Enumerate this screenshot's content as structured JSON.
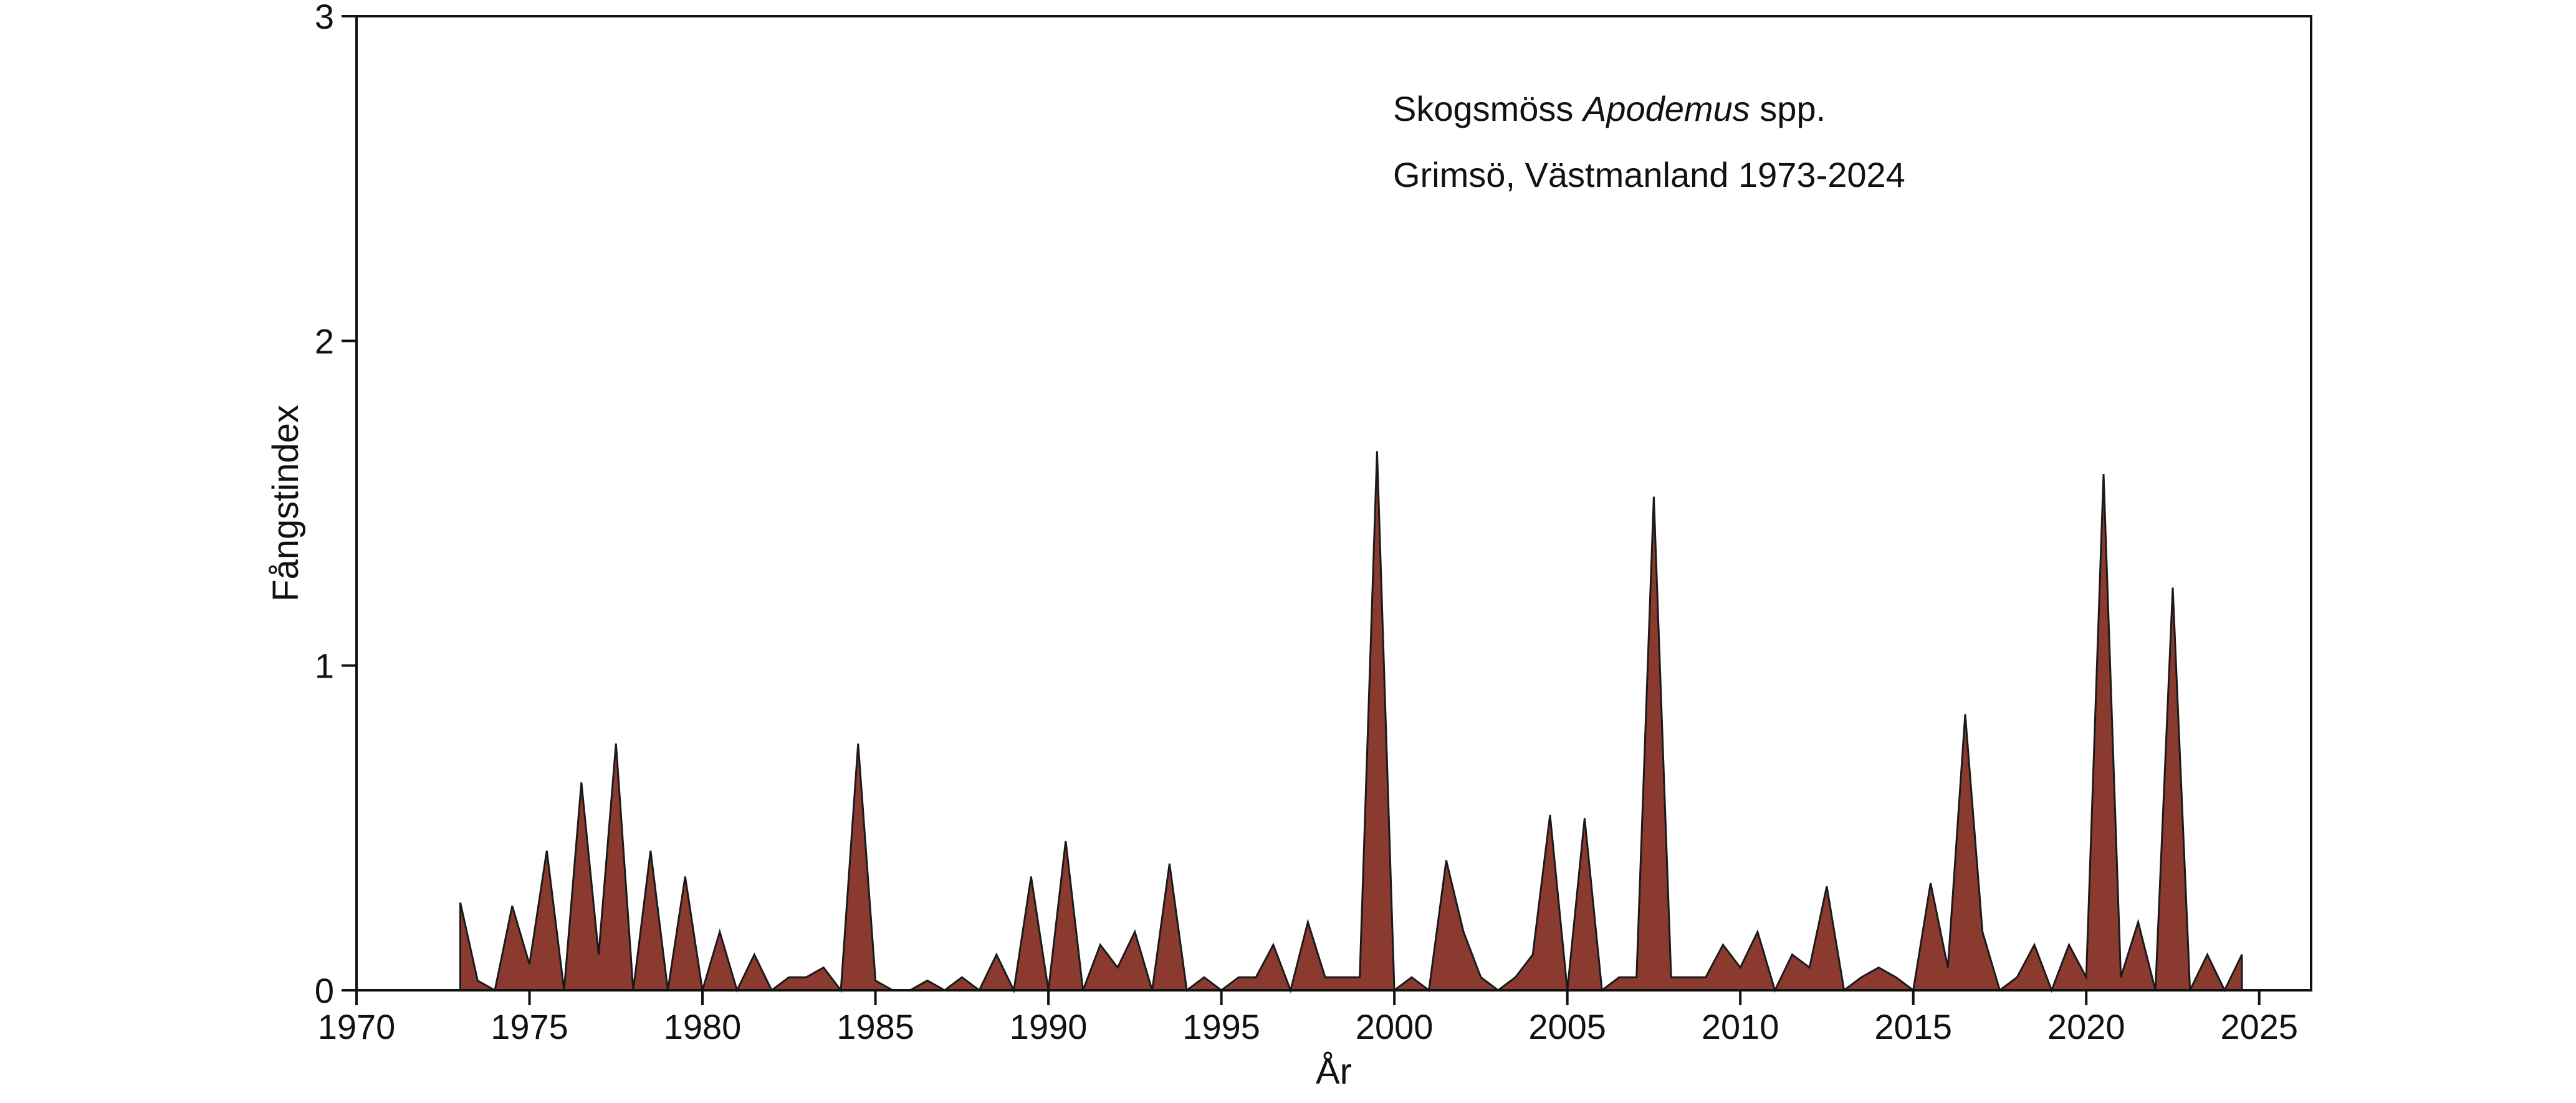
{
  "chart_data": {
    "type": "area",
    "annotations": {
      "species_prefix": "Skogsmöss ",
      "species_genus": "Apodemus",
      "species_suffix": " spp.",
      "location": "Grimsö, Västmanland 1973-2024"
    },
    "xlabel": "År",
    "ylabel": "Fångstindex",
    "xlim": [
      1970,
      2026.5
    ],
    "ylim": [
      0,
      3
    ],
    "xticks": [
      1970,
      1975,
      1980,
      1985,
      1990,
      1995,
      2000,
      2005,
      2010,
      2015,
      2020,
      2025
    ],
    "yticks": [
      0,
      1,
      2,
      3
    ],
    "grid": false,
    "fill_color": "#8B3A2F",
    "line_color": "#1a1a1a",
    "series": [
      {
        "x": [
          1973.0,
          1973.5,
          1974.0,
          1974.5,
          1975.0,
          1975.5,
          1976.0,
          1976.5,
          1977.0,
          1977.5,
          1978.0,
          1978.5,
          1979.0,
          1979.5,
          1980.0,
          1980.5,
          1981.0,
          1981.5,
          1982.0,
          1982.5,
          1983.0,
          1983.5,
          1984.0,
          1984.5,
          1985.0,
          1985.5,
          1986.0,
          1986.5,
          1987.0,
          1987.5,
          1988.0,
          1988.5,
          1989.0,
          1989.5,
          1990.0,
          1990.5,
          1991.0,
          1991.5,
          1992.0,
          1992.5,
          1993.0,
          1993.5,
          1994.0,
          1994.5,
          1995.0,
          1995.5,
          1996.0,
          1996.5,
          1997.0,
          1997.5,
          1998.0,
          1998.5,
          1999.0,
          1999.5,
          2000.0,
          2000.5,
          2001.0,
          2001.5,
          2002.0,
          2002.5,
          2003.0,
          2003.5,
          2004.0,
          2004.5,
          2005.0,
          2005.5,
          2006.0,
          2006.5,
          2007.0,
          2007.5,
          2008.0,
          2008.5,
          2009.0,
          2009.5,
          2010.0,
          2010.5,
          2011.0,
          2011.5,
          2012.0,
          2012.5,
          2013.0,
          2013.5,
          2014.0,
          2014.5,
          2015.0,
          2015.5,
          2016.0,
          2016.5,
          2017.0,
          2017.5,
          2018.0,
          2018.5,
          2019.0,
          2019.5,
          2020.0,
          2020.5,
          2021.0,
          2021.5,
          2022.0,
          2022.5,
          2023.0,
          2023.5,
          2024.0,
          2024.5
        ],
        "values": [
          0.27,
          0.03,
          0.0,
          0.26,
          0.08,
          0.43,
          0.0,
          0.64,
          0.11,
          0.76,
          0.0,
          0.43,
          0.0,
          0.35,
          0.0,
          0.18,
          0.0,
          0.11,
          0.0,
          0.04,
          0.04,
          0.07,
          0.0,
          0.76,
          0.03,
          0.0,
          0.0,
          0.03,
          0.0,
          0.04,
          0.0,
          0.11,
          0.0,
          0.35,
          0.0,
          0.46,
          0.0,
          0.14,
          0.07,
          0.18,
          0.0,
          0.39,
          0.0,
          0.04,
          0.0,
          0.04,
          0.04,
          0.14,
          0.0,
          0.21,
          0.04,
          0.04,
          0.04,
          1.66,
          0.0,
          0.04,
          0.0,
          0.4,
          0.18,
          0.04,
          0.0,
          0.04,
          0.11,
          0.54,
          0.0,
          0.53,
          0.0,
          0.04,
          0.04,
          1.52,
          0.04,
          0.04,
          0.04,
          0.14,
          0.07,
          0.18,
          0.0,
          0.11,
          0.07,
          0.32,
          0.0,
          0.04,
          0.07,
          0.04,
          0.0,
          0.33,
          0.07,
          0.85,
          0.18,
          0.0,
          0.04,
          0.14,
          0.0,
          0.14,
          0.04,
          1.59,
          0.04,
          0.21,
          0.0,
          1.24,
          0.0,
          0.11,
          0.0,
          0.11
        ]
      }
    ]
  }
}
